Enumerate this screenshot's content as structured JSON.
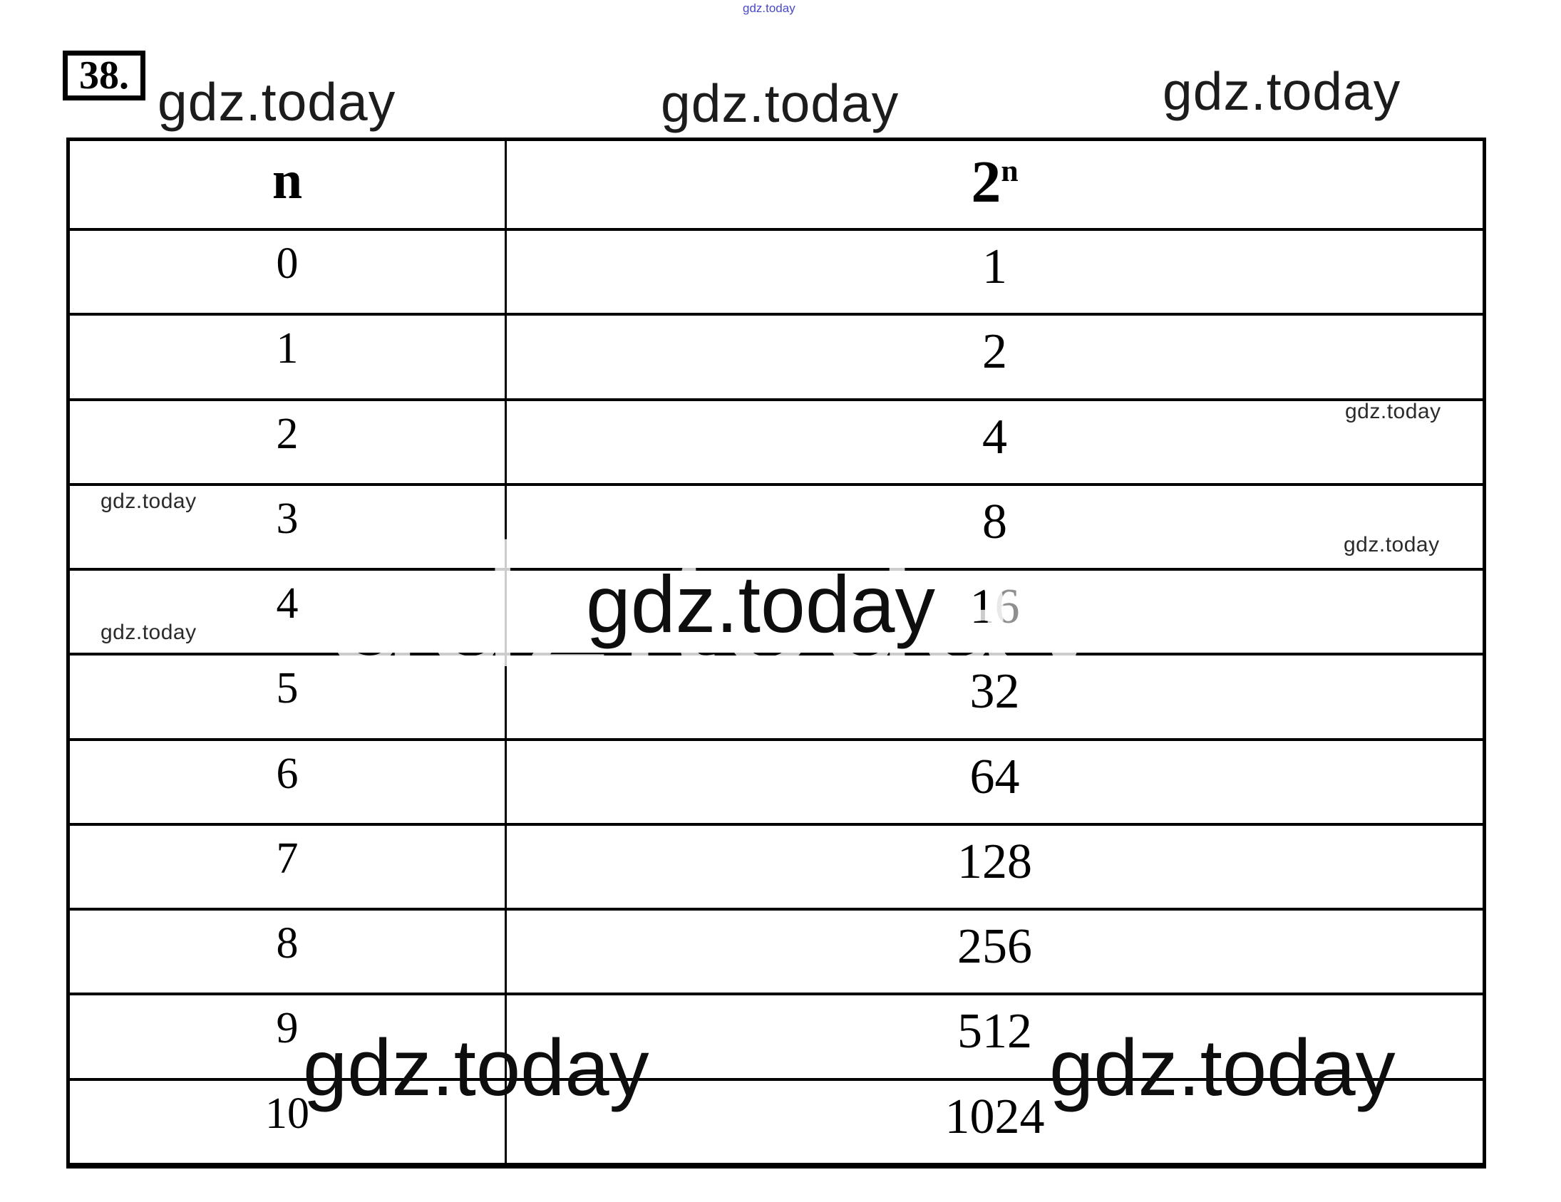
{
  "problem": {
    "number": "38."
  },
  "watermark": {
    "site": "gdz.today"
  },
  "table": {
    "header": {
      "n_label": "n",
      "power_base": "2",
      "power_exponent": "n"
    },
    "rows": [
      {
        "n": "0",
        "value": "1"
      },
      {
        "n": "1",
        "value": "2"
      },
      {
        "n": "2",
        "value": "4"
      },
      {
        "n": "3",
        "value": "8"
      },
      {
        "n": "4",
        "value": "16",
        "value_black": "1",
        "value_gray": "6"
      },
      {
        "n": "5",
        "value": "32"
      },
      {
        "n": "6",
        "value": "64"
      },
      {
        "n": "7",
        "value": "128"
      },
      {
        "n": "8",
        "value": "256"
      },
      {
        "n": "9",
        "value": "512"
      },
      {
        "n": "10",
        "value": "1024"
      }
    ]
  }
}
